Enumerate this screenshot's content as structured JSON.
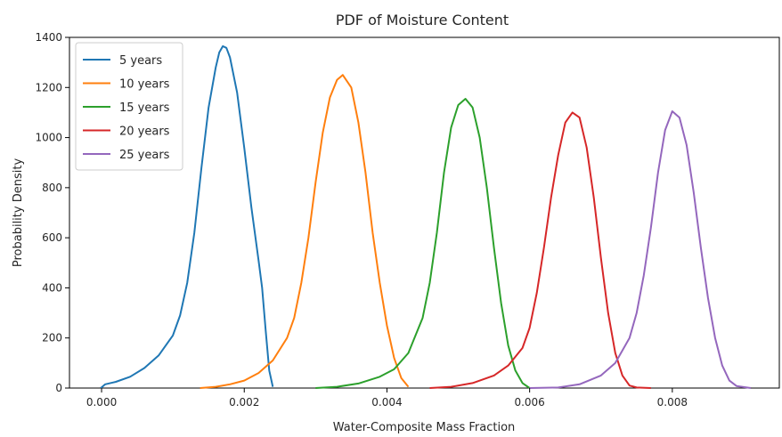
{
  "chart_data": {
    "type": "line",
    "title": "PDF of Moisture Content",
    "xlabel": "Water-Composite Mass Fraction",
    "ylabel": "Probability Density",
    "xlim": [
      -0.00045,
      0.0095
    ],
    "ylim": [
      0,
      1400
    ],
    "xticks": [
      0.0,
      0.002,
      0.004,
      0.006,
      0.008
    ],
    "xtick_labels": [
      "0.000",
      "0.002",
      "0.004",
      "0.006",
      "0.008"
    ],
    "yticks": [
      0,
      200,
      400,
      600,
      800,
      1000,
      1200,
      1400
    ],
    "ytick_labels": [
      "0",
      "200",
      "400",
      "600",
      "800",
      "1000",
      "1200",
      "1400"
    ],
    "grid": false,
    "legend_position": "top-left",
    "series": [
      {
        "name": "5 years",
        "color": "#1f77b4",
        "points": [
          [
            -1e-05,
            0
          ],
          [
            5e-05,
            15
          ],
          [
            0.0002,
            25
          ],
          [
            0.0004,
            45
          ],
          [
            0.0006,
            80
          ],
          [
            0.0008,
            130
          ],
          [
            0.001,
            210
          ],
          [
            0.0011,
            290
          ],
          [
            0.0012,
            420
          ],
          [
            0.0013,
            620
          ],
          [
            0.0014,
            880
          ],
          [
            0.0015,
            1120
          ],
          [
            0.0016,
            1280
          ],
          [
            0.00165,
            1340
          ],
          [
            0.0017,
            1365
          ],
          [
            0.00175,
            1358
          ],
          [
            0.0018,
            1320
          ],
          [
            0.0019,
            1180
          ],
          [
            0.002,
            960
          ],
          [
            0.0021,
            720
          ],
          [
            0.0022,
            510
          ],
          [
            0.00225,
            400
          ],
          [
            0.0023,
            230
          ],
          [
            0.00235,
            70
          ],
          [
            0.0024,
            5
          ]
        ]
      },
      {
        "name": "10 years",
        "color": "#ff7f0e",
        "points": [
          [
            0.00138,
            0
          ],
          [
            0.0016,
            5
          ],
          [
            0.0018,
            15
          ],
          [
            0.002,
            30
          ],
          [
            0.0022,
            60
          ],
          [
            0.0024,
            110
          ],
          [
            0.0026,
            200
          ],
          [
            0.0027,
            280
          ],
          [
            0.0028,
            420
          ],
          [
            0.0029,
            600
          ],
          [
            0.003,
            820
          ],
          [
            0.0031,
            1020
          ],
          [
            0.0032,
            1160
          ],
          [
            0.0033,
            1230
          ],
          [
            0.00338,
            1250
          ],
          [
            0.0035,
            1200
          ],
          [
            0.0036,
            1060
          ],
          [
            0.0037,
            860
          ],
          [
            0.0038,
            620
          ],
          [
            0.0039,
            420
          ],
          [
            0.004,
            250
          ],
          [
            0.0041,
            120
          ],
          [
            0.0042,
            40
          ],
          [
            0.0043,
            5
          ]
        ]
      },
      {
        "name": "15 years",
        "color": "#2ca02c",
        "points": [
          [
            0.003,
            0
          ],
          [
            0.0033,
            5
          ],
          [
            0.0036,
            18
          ],
          [
            0.0039,
            45
          ],
          [
            0.0041,
            75
          ],
          [
            0.0043,
            140
          ],
          [
            0.0045,
            280
          ],
          [
            0.0046,
            420
          ],
          [
            0.0047,
            620
          ],
          [
            0.0048,
            860
          ],
          [
            0.0049,
            1040
          ],
          [
            0.005,
            1130
          ],
          [
            0.0051,
            1155
          ],
          [
            0.0052,
            1120
          ],
          [
            0.0053,
            1000
          ],
          [
            0.0054,
            800
          ],
          [
            0.0055,
            560
          ],
          [
            0.0056,
            340
          ],
          [
            0.0057,
            170
          ],
          [
            0.0058,
            70
          ],
          [
            0.0059,
            20
          ],
          [
            0.006,
            0
          ]
        ]
      },
      {
        "name": "20 years",
        "color": "#d62728",
        "points": [
          [
            0.0046,
            0
          ],
          [
            0.0049,
            5
          ],
          [
            0.0052,
            20
          ],
          [
            0.0055,
            50
          ],
          [
            0.0057,
            90
          ],
          [
            0.0059,
            160
          ],
          [
            0.006,
            240
          ],
          [
            0.0061,
            380
          ],
          [
            0.0062,
            560
          ],
          [
            0.0063,
            760
          ],
          [
            0.0064,
            930
          ],
          [
            0.0065,
            1060
          ],
          [
            0.0066,
            1100
          ],
          [
            0.0067,
            1080
          ],
          [
            0.0068,
            960
          ],
          [
            0.0069,
            760
          ],
          [
            0.007,
            520
          ],
          [
            0.0071,
            300
          ],
          [
            0.0072,
            140
          ],
          [
            0.0073,
            50
          ],
          [
            0.0074,
            10
          ],
          [
            0.0075,
            2
          ],
          [
            0.0077,
            0
          ]
        ]
      },
      {
        "name": "25 years",
        "color": "#9467bd",
        "points": [
          [
            0.006,
            0
          ],
          [
            0.0064,
            2
          ],
          [
            0.0067,
            15
          ],
          [
            0.007,
            50
          ],
          [
            0.0072,
            100
          ],
          [
            0.0074,
            200
          ],
          [
            0.0075,
            300
          ],
          [
            0.0076,
            450
          ],
          [
            0.0077,
            640
          ],
          [
            0.0078,
            860
          ],
          [
            0.0079,
            1030
          ],
          [
            0.008,
            1105
          ],
          [
            0.0081,
            1080
          ],
          [
            0.0082,
            970
          ],
          [
            0.0083,
            780
          ],
          [
            0.0084,
            560
          ],
          [
            0.0085,
            360
          ],
          [
            0.0086,
            200
          ],
          [
            0.0087,
            90
          ],
          [
            0.0088,
            30
          ],
          [
            0.0089,
            8
          ],
          [
            0.0091,
            0
          ]
        ]
      }
    ]
  }
}
